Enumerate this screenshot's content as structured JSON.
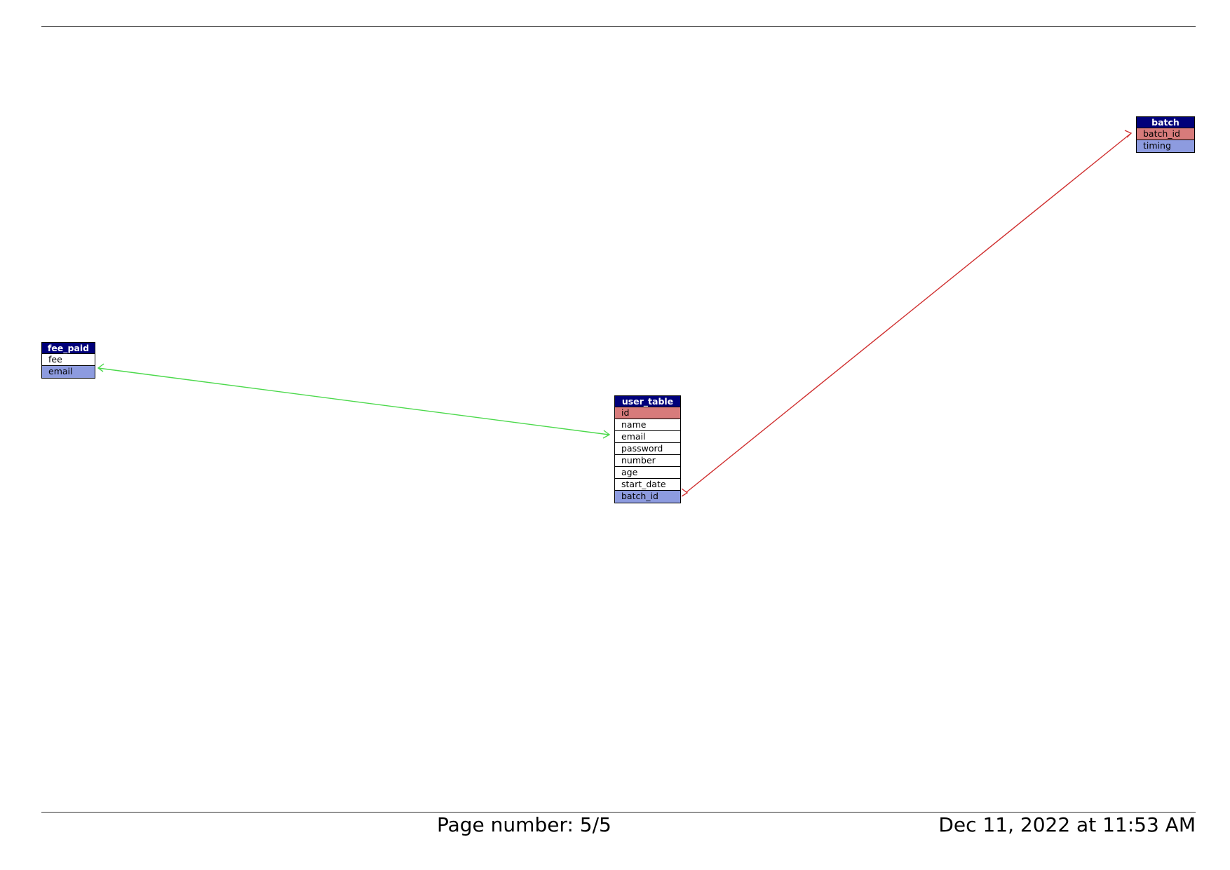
{
  "tables": {
    "fee_paid": {
      "name": "fee_paid",
      "fields": [
        {
          "label": "fee",
          "kind": "plain"
        },
        {
          "label": "email",
          "kind": "fk"
        }
      ]
    },
    "user_table": {
      "name": "user_table",
      "fields": [
        {
          "label": "id",
          "kind": "pk"
        },
        {
          "label": "name",
          "kind": "plain"
        },
        {
          "label": "email",
          "kind": "plain"
        },
        {
          "label": "password",
          "kind": "plain"
        },
        {
          "label": "number",
          "kind": "plain"
        },
        {
          "label": "age",
          "kind": "plain"
        },
        {
          "label": "start_date",
          "kind": "plain"
        },
        {
          "label": "batch_id",
          "kind": "fk"
        }
      ]
    },
    "batch": {
      "name": "batch",
      "fields": [
        {
          "label": "batch_id",
          "kind": "pk"
        },
        {
          "label": "timing",
          "kind": "fk"
        }
      ]
    }
  },
  "relationships": [
    {
      "from": "user_table.email",
      "to": "fee_paid.email",
      "color": "#4cd94c"
    },
    {
      "from": "user_table.batch_id",
      "to": "batch.batch_id",
      "color": "#d03030"
    }
  ],
  "colors": {
    "header": "#00007a",
    "primary_key": "#d77b7b",
    "foreign_key": "#8d9bdf"
  },
  "footer": {
    "page_number": "Page number: 5/5",
    "timestamp": "Dec 11, 2022 at 11:53 AM"
  }
}
